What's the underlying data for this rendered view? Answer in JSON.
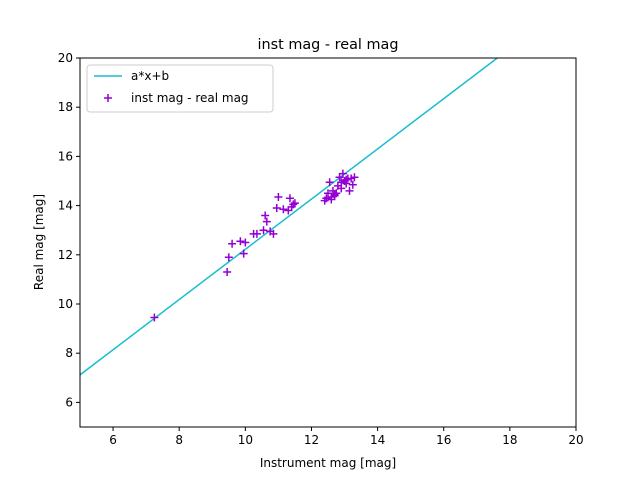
{
  "chart_data": {
    "type": "scatter",
    "title": "inst mag - real mag",
    "xlabel": "Instrument mag [mag]",
    "ylabel": "Real mag [mag]",
    "xlim": [
      5,
      20
    ],
    "ylim": [
      5,
      20
    ],
    "x_ticks": [
      6,
      8,
      10,
      12,
      14,
      16,
      18,
      20
    ],
    "y_ticks": [
      6,
      8,
      10,
      12,
      14,
      16,
      18,
      20
    ],
    "grid": false,
    "legend_position": "top-left",
    "series": [
      {
        "name": "a*x+b",
        "kind": "line",
        "color": "#17becf",
        "x": [
          5,
          17.62
        ],
        "y": [
          7.12,
          20
        ]
      },
      {
        "name": "inst mag - real mag",
        "kind": "scatter",
        "marker": "plus",
        "color": "#9400d3",
        "x": [
          7.25,
          9.45,
          9.5,
          9.6,
          9.85,
          9.95,
          10.0,
          10.25,
          10.35,
          10.55,
          10.6,
          10.65,
          10.75,
          10.85,
          10.95,
          11.0,
          11.15,
          11.3,
          11.35,
          11.4,
          11.45,
          11.5,
          12.4,
          12.45,
          12.5,
          12.55,
          12.6,
          12.65,
          12.7,
          12.75,
          12.8,
          12.85,
          12.9,
          12.95,
          13.0,
          13.05,
          13.1,
          13.15,
          13.2,
          13.25,
          13.3,
          12.6,
          12.9,
          13.05,
          12.7
        ],
        "y": [
          9.45,
          11.3,
          11.9,
          12.45,
          12.55,
          12.05,
          12.5,
          12.85,
          12.85,
          13.0,
          13.6,
          13.35,
          12.95,
          12.85,
          13.9,
          14.35,
          13.85,
          13.8,
          14.3,
          13.95,
          14.05,
          14.1,
          14.2,
          14.3,
          14.5,
          14.95,
          14.25,
          14.6,
          14.4,
          14.5,
          14.8,
          15.15,
          14.7,
          15.3,
          15.0,
          14.9,
          15.1,
          14.6,
          15.1,
          14.85,
          15.15,
          14.35,
          14.95,
          15.05,
          14.45
        ]
      }
    ]
  }
}
